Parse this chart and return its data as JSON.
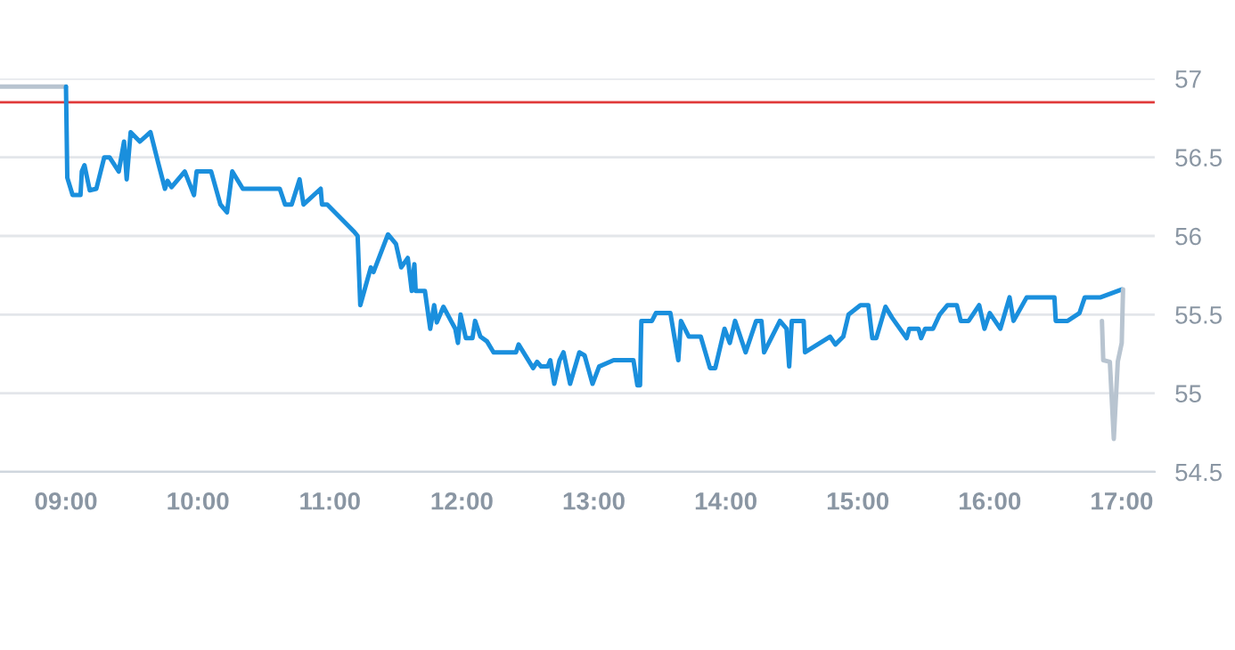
{
  "chart_data": {
    "type": "line",
    "xlim": [
      8.5,
      17.25
    ],
    "ylim": [
      54.5,
      57
    ],
    "xticks": [
      {
        "value": 9,
        "label": "09:00"
      },
      {
        "value": 10,
        "label": "10:00"
      },
      {
        "value": 11,
        "label": "11:00"
      },
      {
        "value": 12,
        "label": "12:00"
      },
      {
        "value": 13,
        "label": "13:00"
      },
      {
        "value": 14,
        "label": "14:00"
      },
      {
        "value": 15,
        "label": "15:00"
      },
      {
        "value": 16,
        "label": "16:00"
      },
      {
        "value": 17,
        "label": "17:00"
      }
    ],
    "yticks": [
      54.5,
      55,
      55.5,
      56,
      56.5,
      57
    ],
    "grid": "y",
    "marker": "none",
    "line_style": "solid",
    "ref_lines": [
      {
        "axis": "y",
        "value": 56.85,
        "color": "#e03a3a"
      }
    ],
    "series": [
      {
        "color": "#b8c4d0",
        "x": [
          8.5,
          9.0
        ],
        "values": [
          56.95,
          56.95
        ]
      },
      {
        "color": "#1a8fdd",
        "x": [
          9.0,
          9.01,
          9.05,
          9.11,
          9.12,
          9.14,
          9.18,
          9.23,
          9.29,
          9.33,
          9.4,
          9.44,
          9.46,
          9.49,
          9.56,
          9.64,
          9.7,
          9.75,
          9.77,
          9.8,
          9.9,
          9.97,
          9.99,
          10.1,
          10.17,
          10.22,
          10.26,
          10.34,
          10.62,
          10.66,
          10.71,
          10.77,
          10.8,
          10.93,
          10.94,
          10.98,
          11.18,
          11.21,
          11.23,
          11.28,
          11.31,
          11.33,
          11.44,
          11.5,
          11.54,
          11.59,
          11.62,
          11.64,
          11.65,
          11.72,
          11.76,
          11.79,
          11.81,
          11.86,
          11.95,
          11.97,
          11.99,
          12.03,
          12.08,
          12.1,
          12.14,
          12.19,
          12.24,
          12.41,
          12.43,
          12.54,
          12.57,
          12.6,
          12.65,
          12.67,
          12.7,
          12.74,
          12.77,
          12.82,
          12.89,
          12.93,
          12.99,
          13.04,
          13.15,
          13.3,
          13.33,
          13.35,
          13.36,
          13.44,
          13.47,
          13.58,
          13.64,
          13.66,
          13.72,
          13.81,
          13.88,
          13.92,
          13.99,
          14.03,
          14.07,
          14.15,
          14.23,
          14.27,
          14.29,
          14.41,
          14.46,
          14.48,
          14.5,
          14.59,
          14.6,
          14.79,
          14.83,
          14.89,
          14.93,
          15.02,
          15.08,
          15.11,
          15.14,
          15.21,
          15.26,
          15.37,
          15.39,
          15.46,
          15.48,
          15.51,
          15.57,
          15.62,
          15.68,
          15.75,
          15.78,
          15.84,
          15.92,
          15.96,
          16.0,
          16.08,
          16.15,
          16.18,
          16.28,
          16.49,
          16.5,
          16.59,
          16.68,
          16.72,
          16.84,
          17.0
        ],
        "values": [
          56.95,
          56.37,
          56.26,
          56.26,
          56.41,
          56.45,
          56.29,
          56.3,
          56.5,
          56.5,
          56.41,
          56.6,
          56.36,
          56.66,
          56.6,
          56.66,
          56.46,
          56.3,
          56.35,
          56.31,
          56.41,
          56.26,
          56.41,
          56.41,
          56.2,
          56.15,
          56.41,
          56.3,
          56.3,
          56.2,
          56.2,
          56.36,
          56.2,
          56.3,
          56.2,
          56.2,
          56.03,
          56.0,
          55.56,
          55.71,
          55.8,
          55.77,
          56.01,
          55.95,
          55.8,
          55.86,
          55.65,
          55.82,
          55.65,
          55.65,
          55.41,
          55.56,
          55.45,
          55.55,
          55.41,
          55.32,
          55.5,
          55.35,
          55.35,
          55.46,
          55.36,
          55.33,
          55.26,
          55.26,
          55.31,
          55.16,
          55.2,
          55.17,
          55.17,
          55.21,
          55.06,
          55.21,
          55.26,
          55.06,
          55.26,
          55.24,
          55.06,
          55.17,
          55.21,
          55.21,
          55.05,
          55.05,
          55.46,
          55.46,
          55.51,
          55.51,
          55.21,
          55.46,
          55.36,
          55.36,
          55.16,
          55.16,
          55.41,
          55.32,
          55.46,
          55.26,
          55.46,
          55.46,
          55.26,
          55.46,
          55.41,
          55.17,
          55.46,
          55.46,
          55.26,
          55.36,
          55.31,
          55.36,
          55.5,
          55.56,
          55.56,
          55.35,
          55.35,
          55.55,
          55.48,
          55.35,
          55.41,
          55.41,
          55.35,
          55.41,
          55.41,
          55.5,
          55.56,
          55.56,
          55.46,
          55.46,
          55.56,
          55.41,
          55.51,
          55.41,
          55.61,
          55.46,
          55.61,
          55.61,
          55.46,
          55.46,
          55.51,
          55.61,
          55.61,
          55.66
        ]
      },
      {
        "color": "#b8c4d0",
        "x": [
          16.85,
          16.86,
          16.91,
          16.94,
          16.97,
          17.0,
          17.01
        ],
        "values": [
          55.46,
          55.21,
          55.2,
          54.71,
          55.2,
          55.32,
          55.66
        ]
      }
    ]
  }
}
